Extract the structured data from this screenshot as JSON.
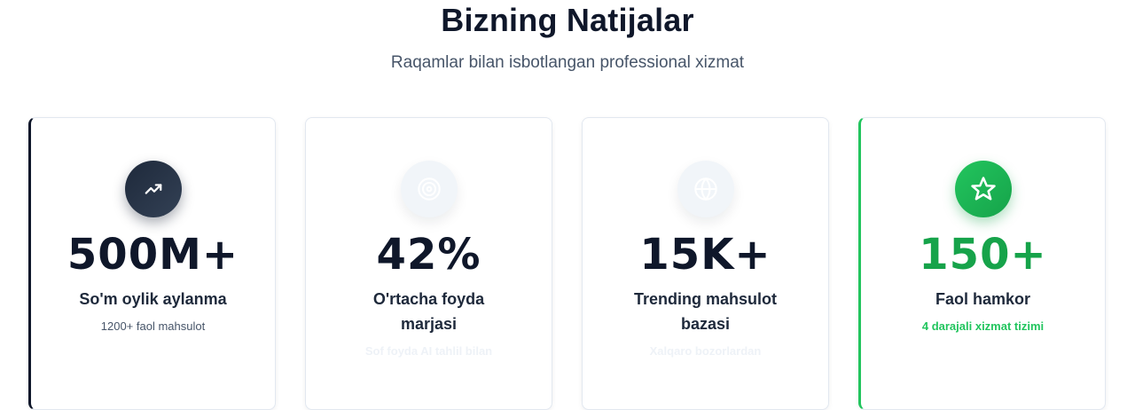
{
  "header": {
    "title": "Bizning Natijalar",
    "subtitle": "Raqamlar bilan isbotlangan professional xizmat"
  },
  "stats": [
    {
      "icon": "trending-up-icon",
      "value": "500M+",
      "label": "So'm oylik aylanma",
      "note": "1200+ faol mahsulot"
    },
    {
      "icon": "target-icon",
      "value": "42%",
      "label": "O'rtacha foyda marjasi",
      "note": "Sof foyda AI tahlil bilan"
    },
    {
      "icon": "globe-icon",
      "value": "15K+",
      "label": "Trending mahsulot bazasi",
      "note": "Xalqaro bozorlardan"
    },
    {
      "icon": "star-icon",
      "value": "150+",
      "label": "Faol hamkor",
      "note": "4 darajali xizmat tizimi"
    }
  ],
  "colors": {
    "dark_accent": "#0f172a",
    "green_accent": "#16a34a",
    "muted_text": "#475569"
  }
}
